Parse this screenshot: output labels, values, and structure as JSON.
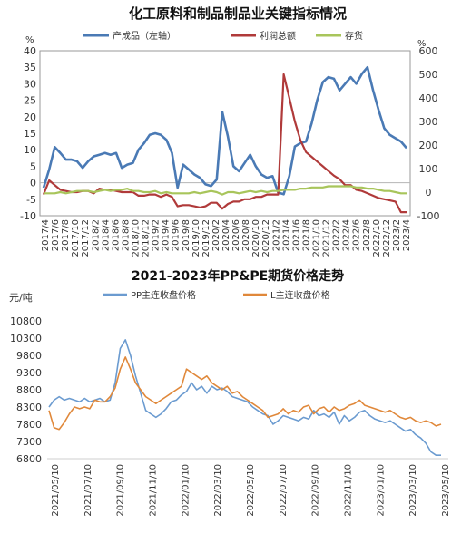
{
  "chart_data": [
    {
      "type": "line",
      "title": "化工原料和制品制品业关键指标情况",
      "y_unit_left": "%",
      "y_unit_right": "%",
      "ylim_left": [
        -10,
        40
      ],
      "yticks_left": [
        -10,
        -5,
        0,
        5,
        10,
        15,
        20,
        25,
        30,
        35,
        40
      ],
      "ylim_right": [
        -100,
        600
      ],
      "yticks_right": [
        -100,
        0,
        100,
        200,
        300,
        400,
        500,
        600
      ],
      "grid": false,
      "legend_position": "top",
      "x_tick_labels": [
        "2017/4",
        "2017/6",
        "2017/8",
        "2017/10",
        "2017/12",
        "2018/2",
        "2018/4",
        "2018/6",
        "2018/8",
        "2018/10",
        "2018/12",
        "2019/2",
        "2019/4",
        "2019/6",
        "2019/8",
        "2019/10",
        "2019/12",
        "2020/2",
        "2020/4",
        "2020/6",
        "2020/8",
        "2020/10",
        "2020/12",
        "2021/2",
        "2021/4",
        "2021/6",
        "2021/8",
        "2021/10",
        "2021/12",
        "2022/2",
        "2022/4",
        "2022/6",
        "2022/8",
        "2022/10",
        "2022/12",
        "2023/2",
        "2023/4"
      ],
      "series": [
        {
          "name": "产成品（左轴）",
          "axis": "left",
          "color": "#4a7ab5",
          "values": [
            -1.5,
            4,
            10.8,
            9,
            7,
            7,
            6.5,
            4.5,
            6.5,
            8,
            8.5,
            9,
            8.5,
            9,
            4.5,
            5.5,
            6,
            10,
            12,
            14.5,
            15,
            14.5,
            13,
            9,
            -1.5,
            5.5,
            4,
            2.5,
            1.5,
            -0.5,
            -1,
            1,
            21.5,
            14,
            5,
            3.5,
            6,
            8.5,
            5,
            2.5,
            1.5,
            2,
            -3,
            -3.5,
            2,
            11,
            12,
            12.5,
            18,
            25,
            30.5,
            32,
            31.5,
            28,
            30,
            32,
            30,
            33,
            35,
            28,
            22,
            16.5,
            14.5,
            13.5,
            12.5,
            10.5
          ]
        },
        {
          "name": "利润总额",
          "axis": "right",
          "color": "#b03a3a",
          "values": [
            -10,
            50,
            30,
            10,
            5,
            0,
            0,
            5,
            5,
            -5,
            15,
            10,
            10,
            5,
            0,
            0,
            0,
            -15,
            -15,
            -10,
            -10,
            -20,
            -10,
            -20,
            -60,
            -55,
            -55,
            -60,
            -65,
            -60,
            -45,
            -45,
            -70,
            -50,
            -40,
            -40,
            -30,
            -30,
            -20,
            -20,
            -10,
            -10,
            -10,
            500,
            400,
            300,
            220,
            170,
            150,
            130,
            110,
            90,
            70,
            55,
            30,
            30,
            10,
            5,
            -5,
            -15,
            -25,
            -30,
            -35,
            -40,
            -85,
            -85
          ]
        },
        {
          "name": "存货",
          "axis": "right",
          "color": "#a8c55b",
          "values": [
            -5,
            -5,
            -5,
            0,
            -5,
            0,
            5,
            5,
            5,
            0,
            5,
            10,
            5,
            10,
            10,
            15,
            5,
            5,
            0,
            0,
            5,
            -5,
            0,
            -5,
            -5,
            -5,
            -5,
            0,
            -5,
            0,
            5,
            0,
            -10,
            0,
            0,
            -5,
            0,
            5,
            0,
            5,
            0,
            5,
            5,
            10,
            10,
            10,
            15,
            15,
            20,
            20,
            20,
            25,
            25,
            25,
            25,
            25,
            20,
            20,
            15,
            15,
            10,
            5,
            5,
            0,
            -5,
            -5
          ]
        }
      ]
    },
    {
      "type": "line",
      "title": "2021-2023年PP&PE期货价格走势",
      "y_unit_left": "元/吨",
      "ylim": [
        6800,
        10800
      ],
      "yticks": [
        6800,
        7300,
        7800,
        8300,
        8800,
        9300,
        9800,
        10300,
        10800
      ],
      "grid": false,
      "legend_position": "top",
      "x_tick_labels": [
        "2021/05/10",
        "2021/07/10",
        "2021/09/10",
        "2021/11/10",
        "2022/01/10",
        "2022/03/10",
        "2022/05/10",
        "2022/07/10",
        "2022/09/10",
        "2022/11/10",
        "2023/01/10",
        "2023/03/10",
        "2023/05/10"
      ],
      "series": [
        {
          "name": "PP主连收盘价格",
          "color": "#6b9bd0",
          "values": [
            8300,
            8500,
            8600,
            8500,
            8550,
            8500,
            8450,
            8550,
            8450,
            8500,
            8550,
            8450,
            8500,
            9000,
            10000,
            10250,
            9800,
            9200,
            8700,
            8200,
            8100,
            8000,
            8100,
            8250,
            8450,
            8500,
            8650,
            8750,
            9000,
            8800,
            8900,
            8700,
            8900,
            8800,
            8850,
            8750,
            8600,
            8550,
            8500,
            8450,
            8300,
            8200,
            8100,
            8050,
            7800,
            7900,
            8050,
            8000,
            7950,
            7900,
            8000,
            7950,
            8200,
            8050,
            8100,
            8000,
            8150,
            7800,
            8050,
            7900,
            8000,
            8150,
            8200,
            8050,
            7950,
            7900,
            7850,
            7900,
            7800,
            7700,
            7600,
            7650,
            7500,
            7400,
            7250,
            7000,
            6900,
            6900
          ]
        },
        {
          "name": "L主连收盘价格",
          "color": "#e0883a",
          "values": [
            8200,
            7700,
            7650,
            7850,
            8100,
            8300,
            8250,
            8300,
            8250,
            8500,
            8450,
            8450,
            8600,
            8850,
            9400,
            9750,
            9400,
            9000,
            8800,
            8600,
            8500,
            8400,
            8500,
            8600,
            8700,
            8800,
            8900,
            9400,
            9300,
            9200,
            9100,
            9200,
            9000,
            8900,
            8800,
            8900,
            8700,
            8750,
            8600,
            8500,
            8400,
            8300,
            8200,
            8000,
            8050,
            8100,
            8250,
            8100,
            8200,
            8150,
            8300,
            8350,
            8100,
            8250,
            8300,
            8150,
            8300,
            8200,
            8250,
            8350,
            8400,
            8500,
            8350,
            8300,
            8250,
            8200,
            8150,
            8200,
            8100,
            8000,
            7950,
            8000,
            7900,
            7850,
            7900,
            7850,
            7750,
            7800
          ]
        }
      ]
    }
  ]
}
